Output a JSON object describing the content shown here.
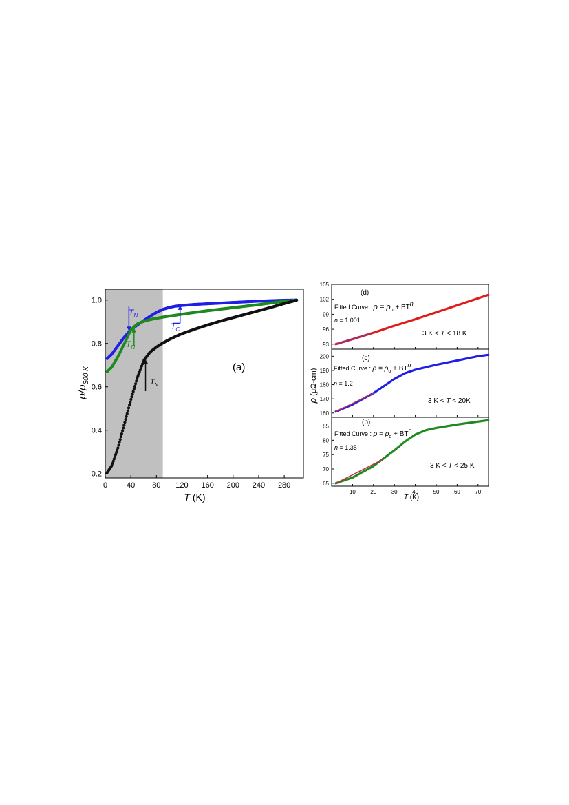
{
  "chart_data": [
    {
      "panel": "a",
      "type": "scatter",
      "panel_label": "(a)",
      "xlabel_var": "T",
      "xlabel_unit": " (K)",
      "ylabel_main": "ρ/ρ",
      "ylabel_sub": "300 K",
      "xlim": [
        0,
        310
      ],
      "ylim": [
        0.18,
        1.05
      ],
      "xticks": [
        0,
        40,
        80,
        120,
        160,
        200,
        240,
        280
      ],
      "yticks": [
        0.2,
        0.4,
        0.6,
        0.8,
        1.0
      ],
      "ytick_labels": [
        "0.2",
        "0.4",
        "0.6",
        "0.8",
        "1.0"
      ],
      "shaded_region_x": [
        0,
        90
      ],
      "grid": false,
      "series": [
        {
          "color": "#1f1fe6",
          "x": [
            3,
            10,
            20,
            30,
            40,
            50,
            60,
            70,
            80,
            90,
            100,
            110,
            120,
            140,
            160,
            180,
            200,
            220,
            240,
            260,
            280,
            300
          ],
          "y": [
            0.73,
            0.75,
            0.79,
            0.83,
            0.862,
            0.885,
            0.905,
            0.925,
            0.943,
            0.957,
            0.966,
            0.972,
            0.975,
            0.98,
            0.983,
            0.986,
            0.989,
            0.992,
            0.995,
            0.997,
            0.999,
            1.0
          ]
        },
        {
          "color": "#1f8a1f",
          "x": [
            3,
            10,
            20,
            30,
            40,
            50,
            60,
            70,
            80,
            90,
            100,
            110,
            120,
            140,
            160,
            180,
            200,
            220,
            240,
            260,
            280,
            300
          ],
          "y": [
            0.67,
            0.69,
            0.74,
            0.8,
            0.862,
            0.89,
            0.902,
            0.91,
            0.916,
            0.921,
            0.926,
            0.93,
            0.935,
            0.943,
            0.951,
            0.958,
            0.965,
            0.972,
            0.979,
            0.987,
            0.994,
            1.0
          ]
        },
        {
          "color": "#111111",
          "x": [
            3,
            10,
            20,
            30,
            40,
            50,
            60,
            70,
            80,
            90,
            100,
            110,
            120,
            140,
            160,
            180,
            200,
            220,
            240,
            260,
            280,
            300
          ],
          "y": [
            0.205,
            0.235,
            0.32,
            0.43,
            0.54,
            0.64,
            0.72,
            0.76,
            0.783,
            0.802,
            0.818,
            0.832,
            0.845,
            0.866,
            0.885,
            0.903,
            0.919,
            0.935,
            0.951,
            0.967,
            0.984,
            1.0
          ]
        }
      ],
      "annotations": [
        {
          "var": "T",
          "sub": "N",
          "color": "#1f1fe6"
        },
        {
          "var": "T",
          "sub": "N",
          "color": "#1f8a1f"
        },
        {
          "var": "T",
          "sub": "N",
          "color": "#111111"
        },
        {
          "var": "T",
          "sub": "C",
          "color": "#1f1fe6"
        }
      ]
    },
    {
      "panel": "d",
      "type": "scatter",
      "panel_label": "(d)",
      "fit_label": "Fitted Curve : ",
      "fit_formula": "ρ = ρ",
      "fit_sub": "o",
      "fit_rest": " + BT",
      "fit_exp": "n",
      "n_label": "n",
      "n_value": " = 1.001",
      "range_label_pre": "3 K < ",
      "range_label_var": "T",
      "range_label_post": " < 18 K",
      "xlim": [
        0,
        75
      ],
      "ylim": [
        92,
        105
      ],
      "yticks": [
        93,
        96,
        99,
        102,
        105
      ],
      "ytick_labels": [
        "93",
        "96",
        "99",
        "102",
        "105"
      ],
      "series": [
        {
          "color": "#e01b1b",
          "x": [
            2,
            10,
            20,
            30,
            40,
            50,
            60,
            70,
            75
          ],
          "y": [
            93.0,
            94.0,
            95.3,
            96.7,
            98.0,
            99.4,
            100.8,
            102.2,
            102.9
          ]
        },
        {
          "name": "fit",
          "color": "#7a3aa0",
          "x": [
            2,
            18
          ],
          "y": [
            93.0,
            95.1
          ]
        }
      ]
    },
    {
      "panel": "c",
      "type": "scatter",
      "panel_label": "(c)",
      "fit_label": "Fitted Curve : ",
      "fit_formula": "ρ = ρ",
      "fit_sub": "o",
      "fit_rest": " + BT",
      "fit_exp": "n",
      "n_label": "n",
      "n_value": " = 1.2",
      "range_label_pre": "3 K < ",
      "range_label_var": "T",
      "range_label_post": " < 20K",
      "xlim": [
        0,
        75
      ],
      "ylim": [
        157,
        205
      ],
      "yticks": [
        160,
        170,
        180,
        190,
        200
      ],
      "ytick_labels": [
        "160",
        "170",
        "180",
        "190",
        "200"
      ],
      "series": [
        {
          "color": "#1f1fe6",
          "x": [
            2,
            10,
            20,
            30,
            35,
            40,
            50,
            60,
            70,
            75
          ],
          "y": [
            161,
            166,
            174,
            184,
            188,
            190.5,
            194,
            197,
            200,
            201
          ]
        },
        {
          "name": "fit",
          "color": "#c0304a",
          "x": [
            2,
            20
          ],
          "y": [
            161,
            174
          ]
        }
      ]
    },
    {
      "panel": "b",
      "type": "scatter",
      "panel_label": "(b)",
      "fit_label": "Fitted Curve : ",
      "fit_formula": "ρ = ρ",
      "fit_sub": "o",
      "fit_rest": " + BT",
      "fit_exp": "n",
      "n_label": "n",
      "n_value": " = 1.35",
      "range_label_pre": "3 K < ",
      "range_label_var": "T",
      "range_label_post": " < 25 K",
      "xlabel_var": "T",
      "xlabel_unit": " (K)",
      "xlim": [
        0,
        75
      ],
      "ylim": [
        64,
        88
      ],
      "xticks": [
        10,
        20,
        30,
        40,
        50,
        60,
        70
      ],
      "yticks": [
        65,
        70,
        75,
        80,
        85
      ],
      "ytick_labels": [
        "65",
        "70",
        "75",
        "80",
        "85"
      ],
      "series": [
        {
          "color": "#1f8a1f",
          "x": [
            2,
            10,
            20,
            30,
            35,
            40,
            45,
            50,
            60,
            70,
            75
          ],
          "y": [
            65,
            67,
            71,
            76.5,
            79.5,
            82,
            83.5,
            84.3,
            85.5,
            86.5,
            87
          ]
        },
        {
          "name": "fit",
          "color": "#c0304a",
          "x": [
            2,
            25
          ],
          "y": [
            65,
            73.5
          ]
        }
      ]
    },
    {
      "shared_ylabel_var": "ρ",
      "shared_ylabel_unit": " (μΩ-cm)"
    }
  ]
}
